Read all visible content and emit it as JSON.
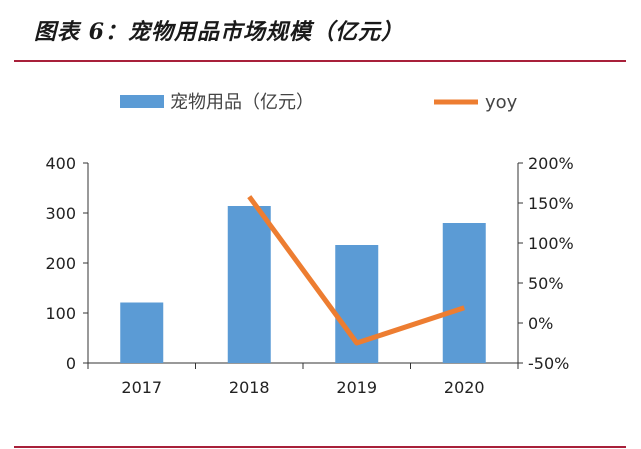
{
  "header": {
    "title": "图表 6：宠物用品市场规模（亿元）"
  },
  "chart_data": {
    "type": "bar",
    "title": "图表 6：宠物用品市场规模（亿元）",
    "categories": [
      "2017",
      "2018",
      "2019",
      "2020"
    ],
    "series": [
      {
        "name": "宠物用品（亿元）",
        "type": "bar",
        "axis": "left",
        "values": [
          121,
          314,
          236,
          280
        ],
        "color": "#5b9bd5"
      },
      {
        "name": "yoy",
        "type": "line",
        "axis": "right",
        "values": [
          null,
          1.58,
          -0.25,
          0.19
        ],
        "color": "#ed7d31"
      }
    ],
    "left_axis": {
      "ylim": [
        0,
        400
      ],
      "ticks": [
        "0",
        "100",
        "200",
        "300",
        "400"
      ]
    },
    "right_axis": {
      "ylim": [
        -0.5,
        2.0
      ],
      "ticks": [
        "-50%",
        "0%",
        "50%",
        "100%",
        "150%",
        "200%"
      ]
    },
    "legend": [
      "宠物用品（亿元）",
      "yoy"
    ],
    "legend_position": "top",
    "grid": false,
    "accent_color": "#a8203a"
  }
}
